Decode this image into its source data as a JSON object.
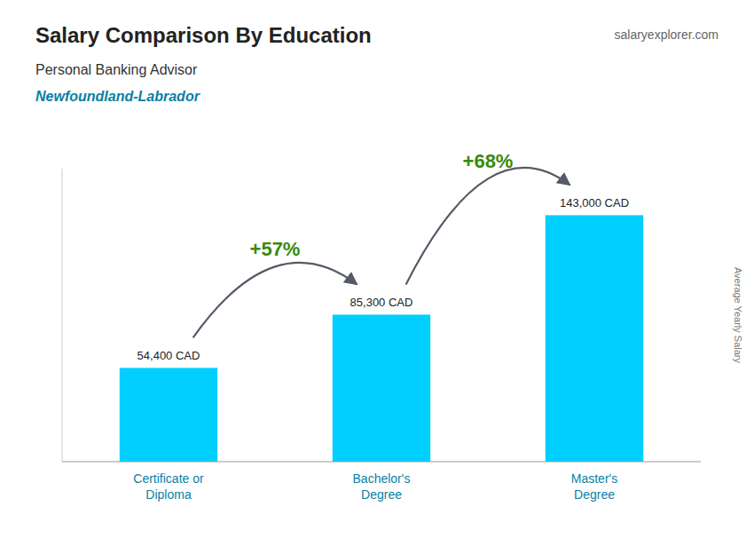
{
  "chart_data": {
    "type": "bar",
    "title": "Salary Comparison By Education",
    "subtitle": [
      "Personal Banking Advisor",
      "Newfoundland-Labrador"
    ],
    "watermark": "salaryexplorer.com",
    "ylabel": "Average Yearly Salary",
    "categories": [
      "Certificate or\nDiploma",
      "Bachelor's\nDegree",
      "Master's\nDegree"
    ],
    "values": [
      54400,
      85300,
      143000
    ],
    "value_labels": [
      "54,400 CAD",
      "85,300 CAD",
      "143,000 CAD"
    ],
    "annotations": [
      "+57%",
      "+68%"
    ],
    "color": "#00cfff",
    "ylim": [
      0,
      170000
    ],
    "data_labels": true,
    "tick_labels": "x",
    "grid": false
  }
}
